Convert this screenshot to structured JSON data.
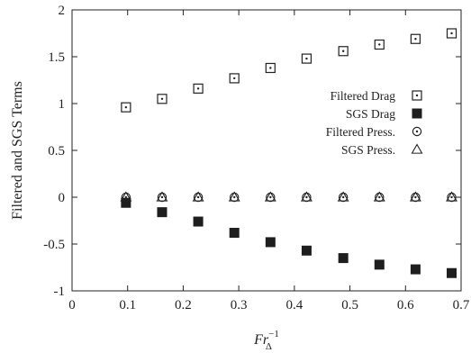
{
  "chart_data": {
    "type": "scatter",
    "xlabel": "Fr",
    "xlabel_sub": "Δ",
    "xlabel_sup": "−1",
    "ylabel": "Filtered and SGS Terms",
    "xlim": [
      0,
      0.7
    ],
    "ylim": [
      -1,
      2
    ],
    "xticks": [
      "0",
      "0.1",
      "0.2",
      "0.3",
      "0.4",
      "0.5",
      "0.6",
      "0.7"
    ],
    "yticks": [
      "-1",
      "-0.5",
      "0",
      "0.5",
      "1",
      "1.5",
      "2"
    ],
    "grid": false,
    "legend_position": "right",
    "x": [
      0.097,
      0.162,
      0.227,
      0.292,
      0.357,
      0.422,
      0.488,
      0.553,
      0.618,
      0.683
    ],
    "series": [
      {
        "name": "Filtered Drag",
        "marker": "square-dot-open",
        "values": [
          0.96,
          1.05,
          1.16,
          1.27,
          1.38,
          1.48,
          1.56,
          1.63,
          1.69,
          1.75
        ]
      },
      {
        "name": "SGS Drag",
        "marker": "square-filled",
        "values": [
          -0.06,
          -0.16,
          -0.26,
          -0.38,
          -0.48,
          -0.57,
          -0.65,
          -0.72,
          -0.77,
          -0.81
        ]
      },
      {
        "name": "Filtered Press.",
        "marker": "circle-dot-open",
        "values": [
          0,
          0,
          0,
          0,
          0,
          0,
          0,
          0,
          0,
          0
        ]
      },
      {
        "name": "SGS Press.",
        "marker": "triangle-open",
        "values": [
          0,
          0,
          0,
          0,
          0,
          0,
          0,
          0,
          0,
          0
        ]
      }
    ]
  }
}
